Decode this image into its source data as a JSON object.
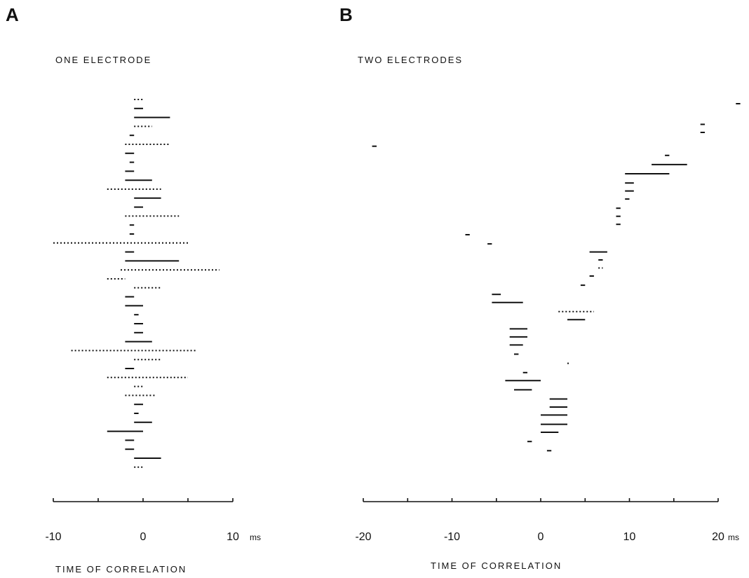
{
  "chart_data": [
    {
      "panel": "A",
      "type": "scatter",
      "title": "ONE ELECTRODE",
      "xlabel": "TIME OF CORRELATION",
      "xunit": "ms",
      "xlim": [
        -10,
        10
      ],
      "xticks": [
        -10,
        -5,
        0,
        5,
        10
      ],
      "xtick_labels": [
        "-10",
        "0",
        "10"
      ],
      "xtick_label_values": [
        -10,
        0,
        10
      ],
      "rows": [
        {
          "x1": -1.0,
          "x2": 0.0,
          "style": "dotted"
        },
        {
          "x1": -1.0,
          "x2": 0.0,
          "style": "solid"
        },
        {
          "x1": -1.0,
          "x2": 3.0,
          "style": "solid"
        },
        {
          "x1": -1.0,
          "x2": 1.0,
          "style": "dotted"
        },
        {
          "x1": -1.5,
          "x2": -1.0,
          "style": "solid"
        },
        {
          "x1": -2.0,
          "x2": 3.0,
          "style": "dotted"
        },
        {
          "x1": -2.0,
          "x2": -1.0,
          "style": "solid"
        },
        {
          "x1": -1.5,
          "x2": -1.0,
          "style": "solid"
        },
        {
          "x1": -2.0,
          "x2": -1.0,
          "style": "solid"
        },
        {
          "x1": -2.0,
          "x2": 1.0,
          "style": "solid"
        },
        {
          "x1": -4.0,
          "x2": 2.0,
          "style": "dotted"
        },
        {
          "x1": -1.0,
          "x2": 2.0,
          "style": "solid"
        },
        {
          "x1": -1.0,
          "x2": 0.0,
          "style": "solid"
        },
        {
          "x1": -2.0,
          "x2": 4.0,
          "style": "dotted"
        },
        {
          "x1": -1.5,
          "x2": -1.0,
          "style": "solid"
        },
        {
          "x1": -1.5,
          "x2": -1.0,
          "style": "solid"
        },
        {
          "x1": -10.0,
          "x2": 5.0,
          "style": "dotted"
        },
        {
          "x1": -2.0,
          "x2": -1.0,
          "style": "solid"
        },
        {
          "x1": -2.0,
          "x2": 4.0,
          "style": "solid"
        },
        {
          "x1": -2.5,
          "x2": 8.5,
          "style": "dotted"
        },
        {
          "x1": -4.0,
          "x2": -2.0,
          "style": "dotted"
        },
        {
          "x1": -1.0,
          "x2": 2.0,
          "style": "dotted"
        },
        {
          "x1": -2.0,
          "x2": -1.0,
          "style": "solid"
        },
        {
          "x1": -2.0,
          "x2": 0.0,
          "style": "solid"
        },
        {
          "x1": -1.0,
          "x2": -0.5,
          "style": "solid"
        },
        {
          "x1": -1.0,
          "x2": 0.0,
          "style": "solid"
        },
        {
          "x1": -1.0,
          "x2": 0.0,
          "style": "solid"
        },
        {
          "x1": -2.0,
          "x2": 1.0,
          "style": "solid"
        },
        {
          "x1": -8.0,
          "x2": 6.0,
          "style": "dotted"
        },
        {
          "x1": -1.0,
          "x2": 2.0,
          "style": "dotted"
        },
        {
          "x1": -2.0,
          "x2": -1.0,
          "style": "solid"
        },
        {
          "x1": -4.0,
          "x2": 5.0,
          "style": "dotted"
        },
        {
          "x1": -1.0,
          "x2": 0.0,
          "style": "dotted"
        },
        {
          "x1": -2.0,
          "x2": 1.5,
          "style": "dotted"
        },
        {
          "x1": -1.0,
          "x2": 0.0,
          "style": "solid"
        },
        {
          "x1": -1.0,
          "x2": -0.5,
          "style": "solid"
        },
        {
          "x1": -1.0,
          "x2": 1.0,
          "style": "solid"
        },
        {
          "x1": -4.0,
          "x2": 0.0,
          "style": "solid"
        },
        {
          "x1": -2.0,
          "x2": -1.0,
          "style": "solid"
        },
        {
          "x1": -2.0,
          "x2": -1.0,
          "style": "solid"
        },
        {
          "x1": -1.0,
          "x2": 2.0,
          "style": "solid"
        },
        {
          "x1": -1.0,
          "x2": 0.0,
          "style": "dotted"
        }
      ]
    },
    {
      "panel": "B",
      "type": "scatter",
      "title": "TWO ELECTRODES",
      "xlabel": "TIME OF CORRELATION",
      "xunit": "ms",
      "xlim": [
        -20,
        20
      ],
      "xticks": [
        -20,
        -15,
        -10,
        -5,
        0,
        5,
        10,
        15,
        20
      ],
      "xtick_labels": [
        "-20",
        "-10",
        "0",
        "10",
        "20"
      ],
      "xtick_label_values": [
        -20,
        -10,
        0,
        10,
        20
      ],
      "rows": [
        {
          "x1": 22.0,
          "x2": 22.5,
          "style": "solid",
          "yrow": 0
        },
        {
          "x1": 18.0,
          "x2": 18.5,
          "style": "solid",
          "yrow": 1.8
        },
        {
          "x1": 18.0,
          "x2": 18.5,
          "style": "solid",
          "yrow": 2.5
        },
        {
          "x1": -19.0,
          "x2": -18.5,
          "style": "solid",
          "yrow": 3.7
        },
        {
          "x1": 14.0,
          "x2": 14.5,
          "style": "solid",
          "yrow": 4.5
        },
        {
          "x1": 12.5,
          "x2": 16.5,
          "style": "solid",
          "yrow": 5.3
        },
        {
          "x1": 9.5,
          "x2": 14.5,
          "style": "solid",
          "yrow": 6.1
        },
        {
          "x1": 9.5,
          "x2": 10.5,
          "style": "solid",
          "yrow": 6.9
        },
        {
          "x1": 9.5,
          "x2": 10.5,
          "style": "solid",
          "yrow": 7.6
        },
        {
          "x1": 9.5,
          "x2": 10.0,
          "style": "solid",
          "yrow": 8.3
        },
        {
          "x1": 8.5,
          "x2": 9.0,
          "style": "solid",
          "yrow": 9.1
        },
        {
          "x1": 8.5,
          "x2": 9.0,
          "style": "solid",
          "yrow": 9.8
        },
        {
          "x1": 8.5,
          "x2": 9.0,
          "style": "solid",
          "yrow": 10.5
        },
        {
          "x1": -8.5,
          "x2": -8.0,
          "style": "solid",
          "yrow": 11.4
        },
        {
          "x1": -6.0,
          "x2": -5.5,
          "style": "solid",
          "yrow": 12.2
        },
        {
          "x1": 5.5,
          "x2": 7.5,
          "style": "solid",
          "yrow": 12.9
        },
        {
          "x1": 6.5,
          "x2": 7.0,
          "style": "solid",
          "yrow": 13.6
        },
        {
          "x1": 6.5,
          "x2": 7.0,
          "style": "dotted",
          "yrow": 14.3
        },
        {
          "x1": 5.5,
          "x2": 6.0,
          "style": "solid",
          "yrow": 15.0
        },
        {
          "x1": 4.5,
          "x2": 5.0,
          "style": "solid",
          "yrow": 15.8
        },
        {
          "x1": -5.5,
          "x2": -4.5,
          "style": "solid",
          "yrow": 16.6
        },
        {
          "x1": -5.5,
          "x2": -2.0,
          "style": "solid",
          "yrow": 17.3
        },
        {
          "x1": 2.0,
          "x2": 6.0,
          "style": "dotted",
          "yrow": 18.1
        },
        {
          "x1": 3.0,
          "x2": 5.0,
          "style": "solid",
          "yrow": 18.8
        },
        {
          "x1": -3.5,
          "x2": -1.5,
          "style": "solid",
          "yrow": 19.6
        },
        {
          "x1": -3.5,
          "x2": -1.5,
          "style": "solid",
          "yrow": 20.3
        },
        {
          "x1": -3.5,
          "x2": -2.0,
          "style": "solid",
          "yrow": 21.0
        },
        {
          "x1": -3.0,
          "x2": -2.5,
          "style": "solid",
          "yrow": 21.8
        },
        {
          "x1": 3.0,
          "x2": 3.2,
          "style": "dotted",
          "yrow": 22.6
        },
        {
          "x1": -2.0,
          "x2": -1.5,
          "style": "solid",
          "yrow": 23.4
        },
        {
          "x1": -4.0,
          "x2": 0.0,
          "style": "solid",
          "yrow": 24.1
        },
        {
          "x1": -3.0,
          "x2": -1.0,
          "style": "solid",
          "yrow": 24.9
        },
        {
          "x1": 1.0,
          "x2": 3.0,
          "style": "solid",
          "yrow": 25.7
        },
        {
          "x1": 1.0,
          "x2": 3.0,
          "style": "solid",
          "yrow": 26.4
        },
        {
          "x1": 0.0,
          "x2": 3.0,
          "style": "solid",
          "yrow": 27.1
        },
        {
          "x1": 0.0,
          "x2": 3.0,
          "style": "solid",
          "yrow": 27.9
        },
        {
          "x1": 0.0,
          "x2": 2.0,
          "style": "solid",
          "yrow": 28.6
        },
        {
          "x1": -1.5,
          "x2": -1.0,
          "style": "solid",
          "yrow": 29.4
        },
        {
          "x1": 0.7,
          "x2": 1.2,
          "style": "solid",
          "yrow": 30.2
        }
      ]
    }
  ],
  "figure": {
    "panel_letters": [
      "A",
      "B"
    ],
    "captions": [
      "ONE ELECTRODE",
      "TWO ELECTRODES"
    ],
    "xlabels": [
      "TIME OF CORRELATION",
      "TIME OF CORRELATION"
    ]
  }
}
